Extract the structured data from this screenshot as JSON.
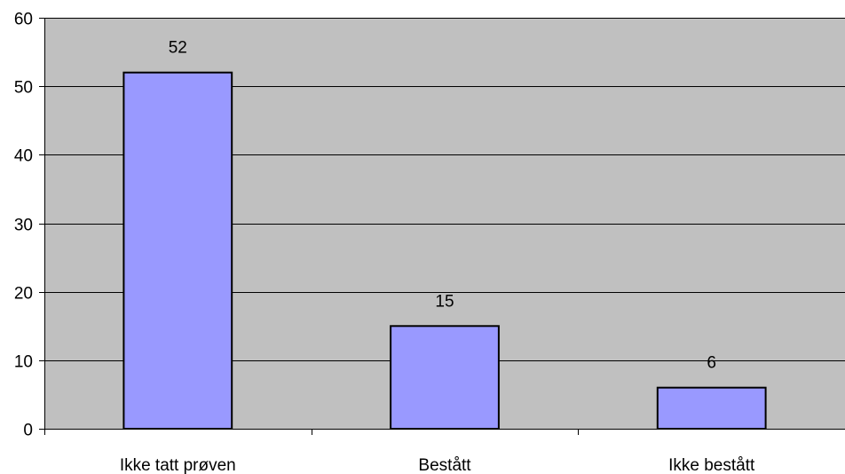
{
  "chart_data": {
    "type": "bar",
    "title": "",
    "xlabel": "",
    "ylabel": "",
    "categories": [
      "Ikke tatt prøven",
      "Bestått",
      "Ikke bestått"
    ],
    "values": [
      52,
      15,
      6
    ],
    "data_labels": [
      "52",
      "15",
      "6"
    ],
    "ylim": [
      0,
      60
    ],
    "yticks": [
      0,
      10,
      20,
      30,
      40,
      50,
      60
    ],
    "grid": true,
    "legend": "none"
  },
  "colors": {
    "plot_background": "#c0c0c0",
    "bar_fill": "#9999ff",
    "bar_stroke": "#000000",
    "gridline": "#000000",
    "axis": "#000000"
  }
}
